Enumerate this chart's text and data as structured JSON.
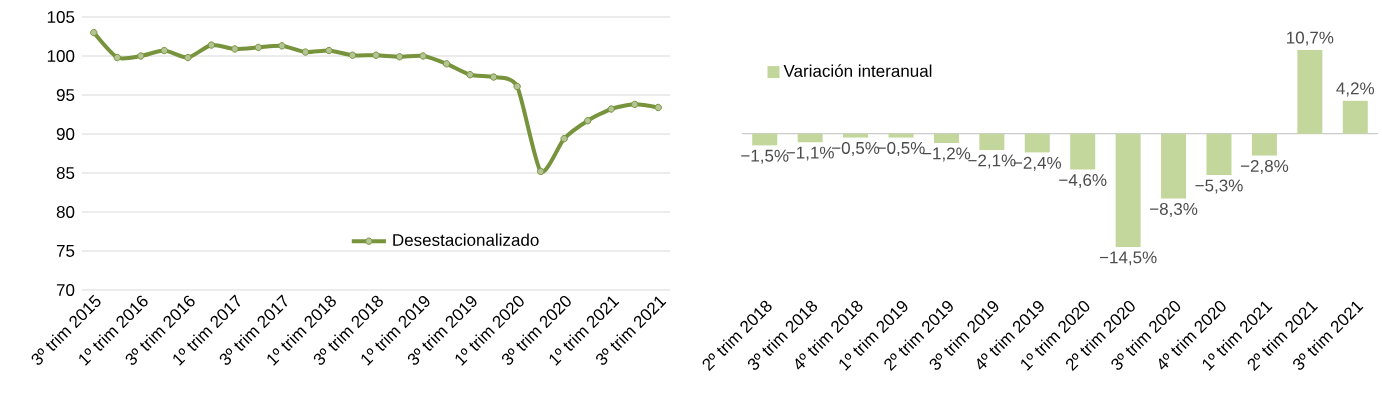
{
  "chart_data": [
    {
      "type": "line",
      "categories": [
        "3º trim 2015",
        null,
        "1º trim 2016",
        null,
        "3º trim 2016",
        null,
        "1º trim 2017",
        null,
        "3º trim 2017",
        null,
        "1º trim 2018",
        null,
        "3º trim 2018",
        null,
        "1º trim 2019",
        null,
        "3º trim 2019",
        null,
        "1º trim 2020",
        null,
        "3º trim 2020",
        null,
        "1º trim 2021",
        null,
        "3º trim 2021"
      ],
      "series": [
        {
          "name": "Desestacionalizado",
          "color": "#77933c",
          "values": [
            103.0,
            99.8,
            100.0,
            100.7,
            99.8,
            101.4,
            100.9,
            101.1,
            101.3,
            100.5,
            100.7,
            100.1,
            100.1,
            99.9,
            100.0,
            99.0,
            97.6,
            97.3,
            96.1,
            85.2,
            89.4,
            91.7,
            93.2,
            93.8,
            93.4
          ]
        }
      ],
      "ylim": [
        70,
        105
      ],
      "yticks": [
        70,
        75,
        80,
        85,
        90,
        95,
        100,
        105
      ],
      "grid": "y",
      "legend": "bottom",
      "marker": "circle",
      "line_style": "solid"
    },
    {
      "type": "bar",
      "categories": [
        "2º trim 2018",
        "3º trim 2018",
        "4º trim 2018",
        "1º trim 2019",
        "2º trim 2019",
        "3º trim 2019",
        "4º trim 2019",
        "1º trim 2020",
        "2º trim 2020",
        "3º trim 2020",
        "4º trim 2020",
        "1º trim 2021",
        "2º trim 2021",
        "3º trim 2021"
      ],
      "series": [
        {
          "name": "Variación interanual",
          "color": "#c3d69b",
          "values": [
            -1.5,
            -1.1,
            -0.5,
            -0.5,
            -1.2,
            -2.1,
            -2.4,
            -4.6,
            -14.5,
            -8.3,
            -5.3,
            -2.8,
            10.7,
            4.2
          ],
          "value_labels": [
            "−1,5%",
            "−1,1%",
            "−0,5%",
            "−0,5%",
            "−1,2%",
            "−2,1%",
            "−2,4%",
            "−4,6%",
            "−14,5%",
            "−8,3%",
            "−5,3%",
            "−2,8%",
            "10,7%",
            "4,2%"
          ]
        }
      ],
      "legend": "top left"
    }
  ]
}
